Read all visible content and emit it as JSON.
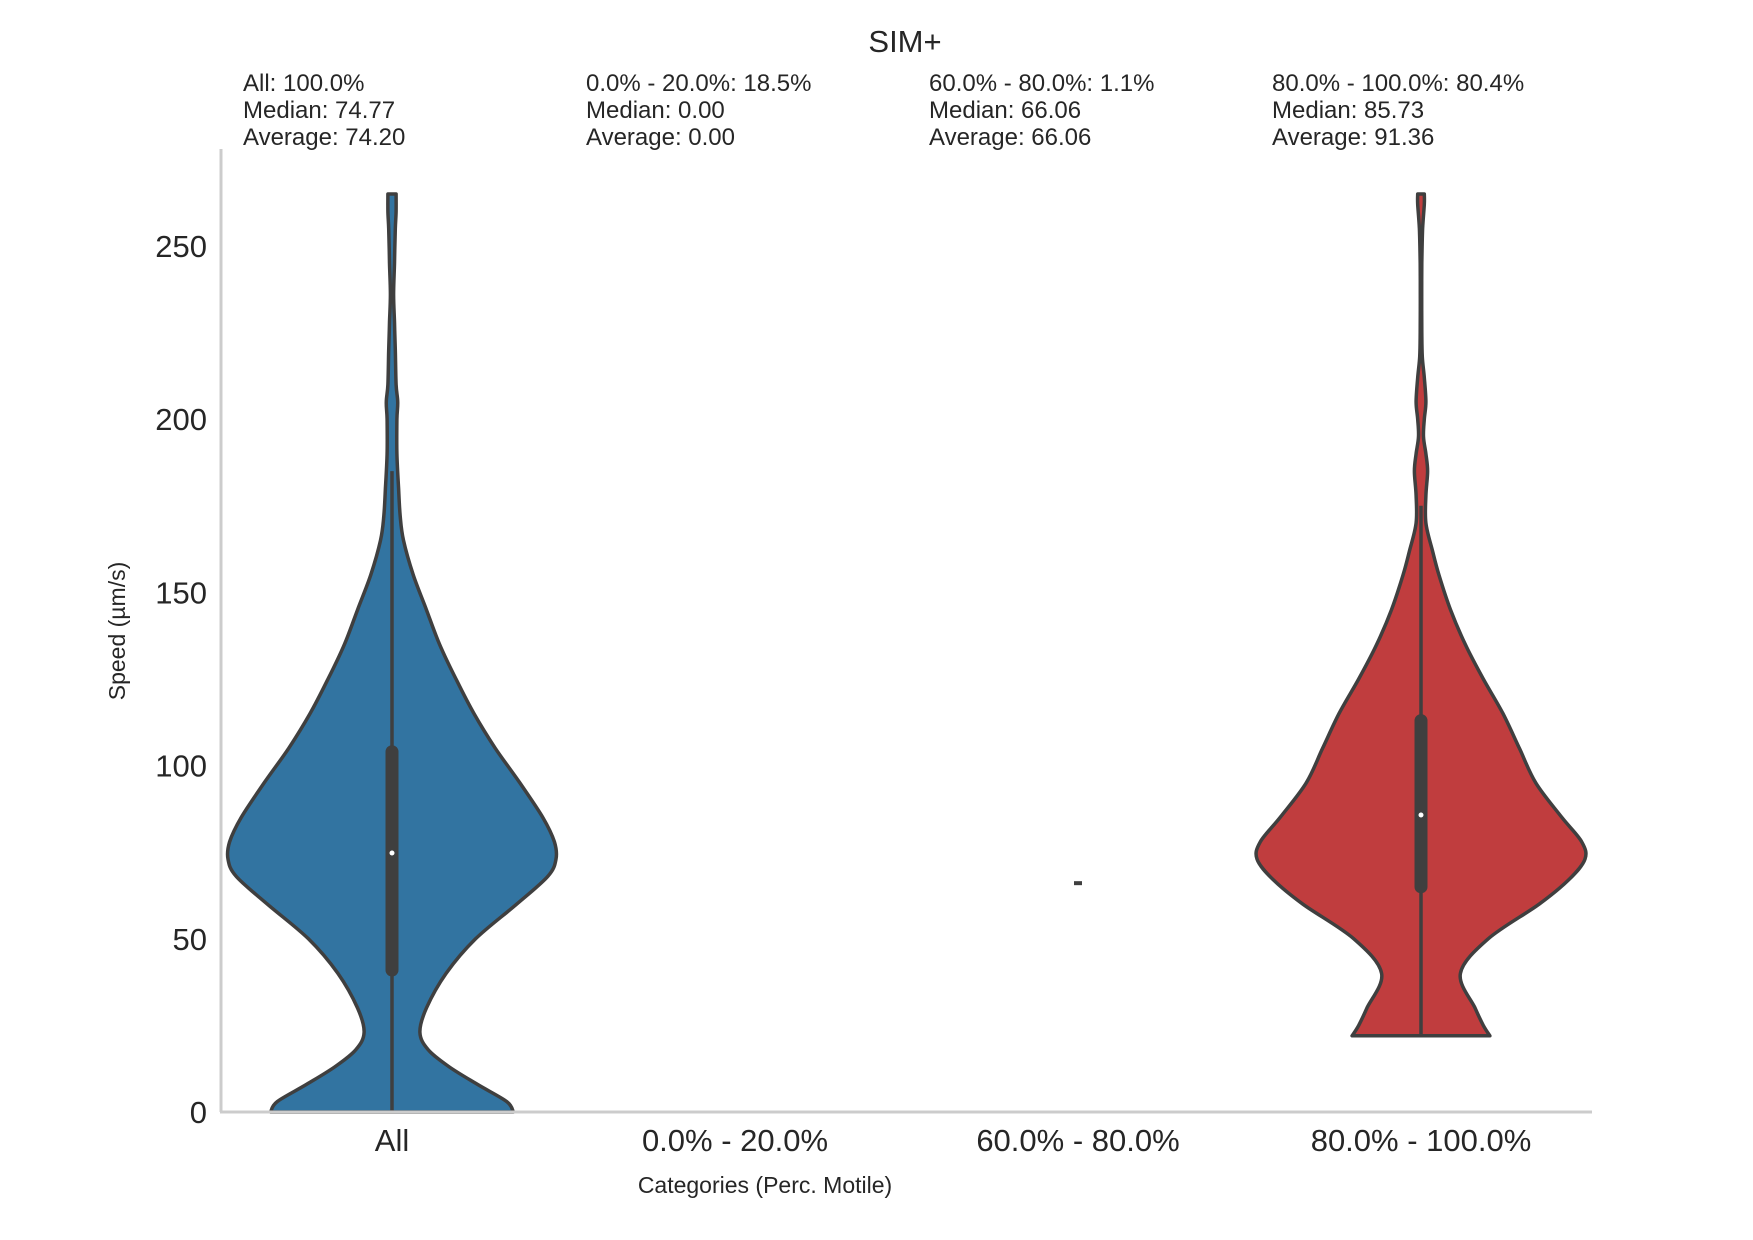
{
  "chart_data": {
    "type": "violin",
    "title": "SIM+",
    "xlabel": "Categories (Perc. Motile)",
    "ylabel": "Speed (µm/s)",
    "ylim": [
      0,
      280
    ],
    "yticks": [
      0,
      50,
      100,
      150,
      200,
      250
    ],
    "grid": false,
    "categories": [
      "All",
      "0.0% - 20.0%",
      "60.0% - 80.0%",
      "80.0% - 100.0%"
    ],
    "stats": [
      {
        "line1": "All: 100.0%",
        "line2": "Median: 74.77",
        "line3": "Average:  74.20"
      },
      {
        "line1": "0.0% - 20.0%: 18.5%",
        "line2": "Median: 0.00",
        "line3": "Average:  0.00"
      },
      {
        "line1": "60.0% - 80.0%: 1.1%",
        "line2": "Median: 66.06",
        "line3": "Average:  66.06"
      },
      {
        "line1": "80.0% - 100.0%: 80.4%",
        "line2": "Median: 85.73",
        "line3": "Average:  91.36"
      }
    ],
    "series": [
      {
        "category": "All",
        "color": "#3274a1",
        "min": 0,
        "max": 265,
        "median": 74.77,
        "q1": 41,
        "q3": 104,
        "whisker_low": 0,
        "whisker_high": 185,
        "density": [
          [
            0,
            0.74
          ],
          [
            3,
            0.7
          ],
          [
            8,
            0.52
          ],
          [
            13,
            0.35
          ],
          [
            18,
            0.22
          ],
          [
            23,
            0.17
          ],
          [
            30,
            0.21
          ],
          [
            40,
            0.33
          ],
          [
            50,
            0.51
          ],
          [
            60,
            0.76
          ],
          [
            68,
            0.95
          ],
          [
            73,
            1.0
          ],
          [
            78,
            0.99
          ],
          [
            85,
            0.92
          ],
          [
            95,
            0.78
          ],
          [
            105,
            0.63
          ],
          [
            115,
            0.5
          ],
          [
            125,
            0.39
          ],
          [
            135,
            0.29
          ],
          [
            145,
            0.21
          ],
          [
            155,
            0.13
          ],
          [
            165,
            0.07
          ],
          [
            172,
            0.05
          ],
          [
            180,
            0.04
          ],
          [
            190,
            0.03
          ],
          [
            200,
            0.03
          ],
          [
            205,
            0.035
          ],
          [
            210,
            0.025
          ],
          [
            220,
            0.02
          ],
          [
            228,
            0.015
          ],
          [
            236,
            0.01
          ],
          [
            245,
            0.015
          ],
          [
            255,
            0.02
          ],
          [
            260,
            0.025
          ],
          [
            265,
            0.025
          ]
        ]
      },
      {
        "category": "0.0% - 20.0%",
        "color": "#e1812c",
        "empty": true
      },
      {
        "category": "60.0% - 80.0%",
        "color": "#3a923a",
        "point": 66.06
      },
      {
        "category": "80.0% - 100.0%",
        "color": "#c03d3e",
        "min": 22,
        "max": 265,
        "median": 85.73,
        "q1": 65,
        "q3": 113,
        "whisker_low": 22,
        "whisker_high": 175,
        "density": [
          [
            22,
            0.42
          ],
          [
            25,
            0.38
          ],
          [
            30,
            0.33
          ],
          [
            40,
            0.24
          ],
          [
            50,
            0.41
          ],
          [
            60,
            0.72
          ],
          [
            67,
            0.9
          ],
          [
            73,
            1.0
          ],
          [
            78,
            0.98
          ],
          [
            85,
            0.86
          ],
          [
            95,
            0.7
          ],
          [
            105,
            0.6
          ],
          [
            115,
            0.5
          ],
          [
            125,
            0.38
          ],
          [
            135,
            0.27
          ],
          [
            145,
            0.18
          ],
          [
            155,
            0.11
          ],
          [
            162,
            0.07
          ],
          [
            170,
            0.03
          ],
          [
            178,
            0.03
          ],
          [
            185,
            0.04
          ],
          [
            190,
            0.03
          ],
          [
            195,
            0.015
          ],
          [
            200,
            0.02
          ],
          [
            205,
            0.03
          ],
          [
            212,
            0.02
          ],
          [
            218,
            0.008
          ],
          [
            225,
            0.005
          ],
          [
            235,
            0.004
          ],
          [
            245,
            0.005
          ],
          [
            255,
            0.01
          ],
          [
            262,
            0.02
          ],
          [
            265,
            0.02
          ]
        ]
      }
    ]
  }
}
